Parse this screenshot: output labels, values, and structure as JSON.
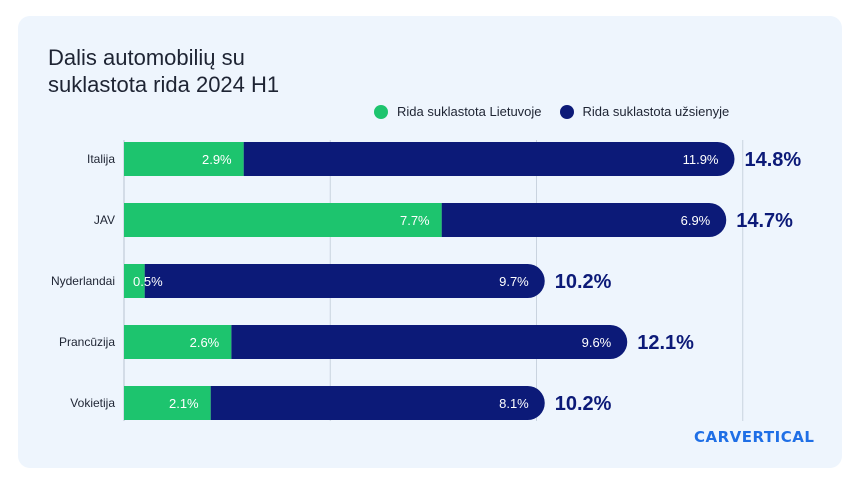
{
  "title": {
    "line1": "Dalis automobilių su",
    "line2": "suklastota rida 2024 H1"
  },
  "legend": {
    "local": "Rida suklastota Lietuvoje",
    "foreign": "Rida suklastota užsienyje"
  },
  "colors": {
    "local": "#1dc46e",
    "foreign": "#0c1a78",
    "total_text": "#0c1a78",
    "label_text": "#1e2433"
  },
  "brand": "CARVERTICAL",
  "chart_data": {
    "type": "bar",
    "orientation": "horizontal",
    "stacked": true,
    "title": "Dalis automobilių su suklastota rida 2024 H1",
    "xlabel": "",
    "ylabel": "",
    "xlim": [
      0,
      15
    ],
    "grid": true,
    "legend_position": "top-right",
    "categories": [
      "Italija",
      "JAV",
      "Nyderlandai",
      "Prancūzija",
      "Vokietija"
    ],
    "series": [
      {
        "name": "Rida suklastota Lietuvoje",
        "values": [
          2.9,
          7.7,
          0.5,
          2.6,
          2.1
        ],
        "labels": [
          "2.9%",
          "7.7%",
          "0.5%",
          "2.6%",
          "2.1%"
        ]
      },
      {
        "name": "Rida suklastota užsienyje",
        "values": [
          11.9,
          6.9,
          9.7,
          9.6,
          8.1
        ],
        "labels": [
          "11.9%",
          "6.9%",
          "9.7%",
          "9.6%",
          "8.1%"
        ]
      }
    ],
    "totals": [
      "14.8%",
      "14.7%",
      "10.2%",
      "12.1%",
      "10.2%"
    ]
  }
}
